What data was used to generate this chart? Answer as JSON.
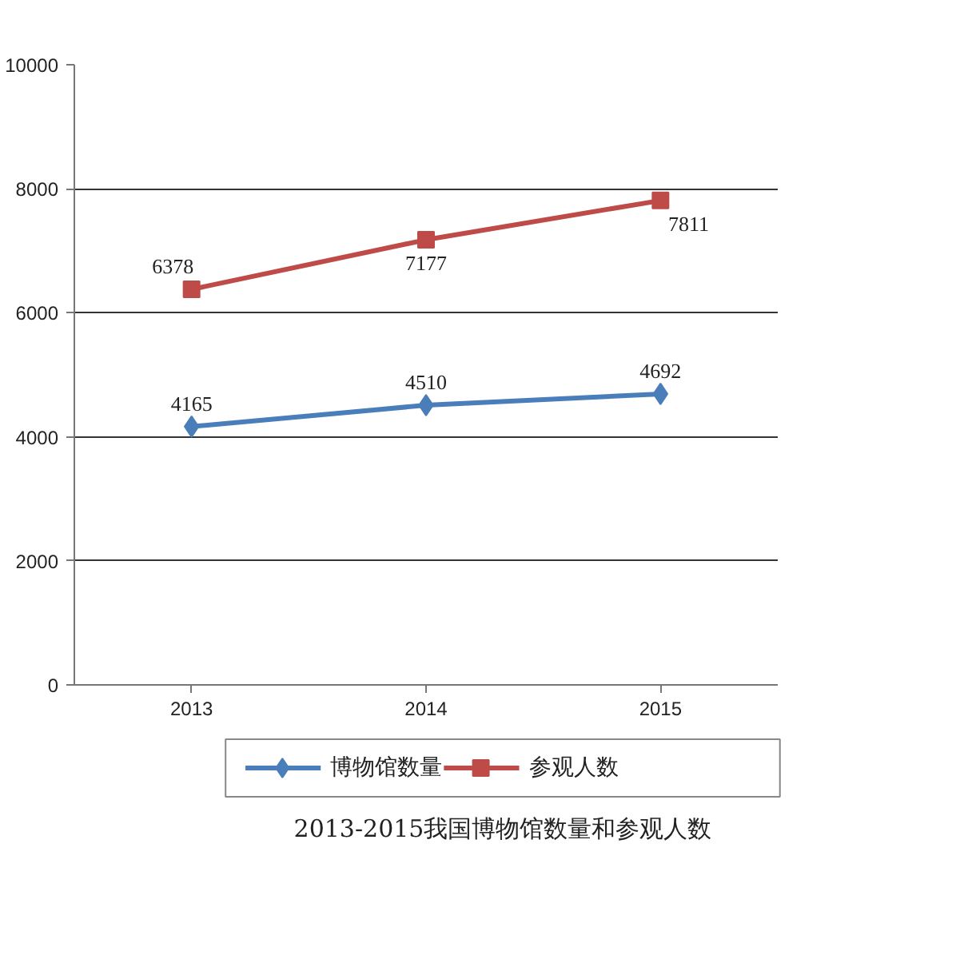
{
  "chart_data": {
    "type": "line",
    "title": "2013-2015我国博物馆数量和参观人数",
    "categories": [
      "2013",
      "2014",
      "2015"
    ],
    "series": [
      {
        "name": "博物馆数量",
        "color": "#4a7ebb",
        "marker": "diamond",
        "values": [
          4165,
          4510,
          4692
        ]
      },
      {
        "name": "参观人数",
        "color": "#be4b48",
        "marker": "square",
        "values": [
          6378,
          7177,
          7811
        ]
      }
    ],
    "ylim": [
      0,
      10000
    ],
    "yticks": [
      0,
      2000,
      4000,
      6000,
      8000,
      10000
    ],
    "grid": "y",
    "legend": "bottom",
    "data_labels": true
  }
}
